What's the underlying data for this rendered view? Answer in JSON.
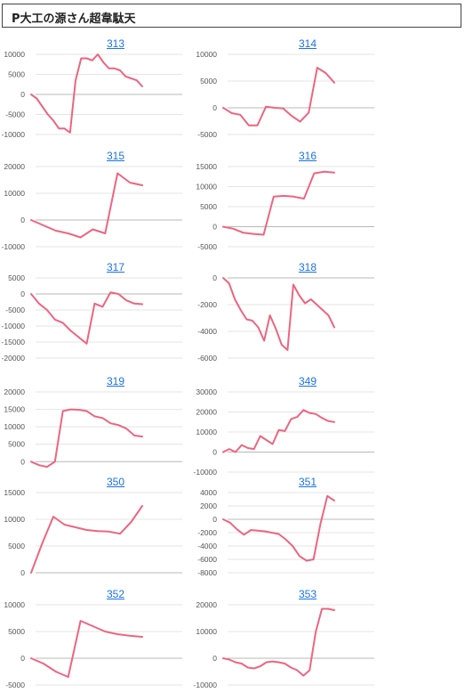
{
  "header": {
    "title": "P大工の源さん超韋駄天"
  },
  "colors": {
    "series": "#ee6580",
    "link": "#1a73e8"
  },
  "chart_data": [
    {
      "type": "line",
      "title": "313",
      "yticks": [
        10000,
        5000,
        0,
        -5000,
        -10000
      ],
      "ylim": [
        -10000,
        10000
      ],
      "values": [
        0,
        -1000,
        -3000,
        -5000,
        -6500,
        -8500,
        -8500,
        -9500,
        3500,
        9000,
        9000,
        8500,
        10000,
        8000,
        6500,
        6500,
        6000,
        4500,
        4000,
        3500,
        2000
      ]
    },
    {
      "type": "line",
      "title": "314",
      "yticks": [
        10000,
        5000,
        0,
        -5000
      ],
      "ylim": [
        -5000,
        10000
      ],
      "values": [
        0,
        -1000,
        -1300,
        -3300,
        -3300,
        200,
        0,
        -100,
        -1500,
        -2600,
        -900,
        7500,
        6500,
        4700
      ]
    },
    {
      "type": "line",
      "title": "315",
      "yticks": [
        20000,
        10000,
        0,
        -10000
      ],
      "ylim": [
        -10000,
        20000
      ],
      "values": [
        0,
        -2000,
        -4000,
        -5000,
        -6500,
        -3500,
        -5000,
        17500,
        14000,
        13000
      ]
    },
    {
      "type": "line",
      "title": "316",
      "yticks": [
        15000,
        10000,
        5000,
        0,
        -5000
      ],
      "ylim": [
        -5000,
        15000
      ],
      "values": [
        0,
        -500,
        -1500,
        -1800,
        -2000,
        7500,
        7700,
        7500,
        7000,
        13300,
        13700,
        13500
      ]
    },
    {
      "type": "line",
      "title": "317",
      "yticks": [
        5000,
        0,
        -5000,
        -10000,
        -15000,
        -20000
      ],
      "ylim": [
        -20000,
        5000
      ],
      "values": [
        0,
        -3000,
        -5000,
        -8000,
        -9000,
        -11500,
        -13500,
        -15500,
        -3000,
        -4000,
        500,
        0,
        -2000,
        -3000,
        -3200
      ]
    },
    {
      "type": "line",
      "title": "318",
      "yticks": [
        0,
        -2000,
        -4000,
        -6000
      ],
      "ylim": [
        -6000,
        0
      ],
      "values": [
        0,
        -400,
        -1600,
        -2400,
        -3100,
        -3200,
        -3700,
        -4700,
        -2800,
        -3800,
        -5000,
        -5400,
        -500,
        -1300,
        -1900,
        -1600,
        -2000,
        -2400,
        -2800,
        -3700
      ]
    },
    {
      "type": "line",
      "title": "319",
      "yticks": [
        20000,
        15000,
        10000,
        5000,
        0
      ],
      "ylim": [
        -3000,
        20000
      ],
      "values": [
        0,
        -1000,
        -1500,
        0,
        14500,
        15000,
        14900,
        14500,
        13000,
        12500,
        11000,
        10500,
        9500,
        7500,
        7200
      ]
    },
    {
      "type": "line",
      "title": "349",
      "yticks": [
        30000,
        20000,
        10000,
        0,
        -10000
      ],
      "ylim": [
        -10000,
        30000
      ],
      "values": [
        0,
        1500,
        0,
        3500,
        2000,
        1500,
        8000,
        6000,
        4000,
        11000,
        10500,
        16500,
        17500,
        21000,
        19500,
        19000,
        17000,
        15500,
        15000
      ]
    },
    {
      "type": "line",
      "title": "350",
      "yticks": [
        15000,
        10000,
        5000,
        0
      ],
      "ylim": [
        0,
        15000
      ],
      "values": [
        0,
        5500,
        10500,
        9000,
        8500,
        8000,
        7800,
        7700,
        7300,
        9500,
        12500
      ]
    },
    {
      "type": "line",
      "title": "351",
      "yticks": [
        4000,
        2000,
        0,
        -2000,
        -4000,
        -6000,
        -8000
      ],
      "ylim": [
        -8000,
        4000
      ],
      "values": [
        0,
        -500,
        -1500,
        -2300,
        -1600,
        -1700,
        -1800,
        -2000,
        -2200,
        -3000,
        -4000,
        -5500,
        -6200,
        -6000,
        -700,
        3500,
        2800
      ]
    },
    {
      "type": "line",
      "title": "352",
      "yticks": [
        10000,
        5000,
        0,
        -5000
      ],
      "ylim": [
        -5000,
        10000
      ],
      "values": [
        0,
        -1000,
        -2500,
        -3500,
        7000,
        6000,
        5000,
        4500,
        4200,
        4000
      ]
    },
    {
      "type": "line",
      "title": "353",
      "yticks": [
        20000,
        10000,
        0,
        -10000
      ],
      "ylim": [
        -10000,
        20000
      ],
      "values": [
        0,
        -500,
        -1500,
        -2000,
        -3500,
        -3800,
        -3000,
        -1500,
        -1200,
        -1500,
        -2000,
        -3500,
        -4500,
        -6500,
        -4500,
        10000,
        18500,
        18500,
        18000
      ]
    }
  ]
}
